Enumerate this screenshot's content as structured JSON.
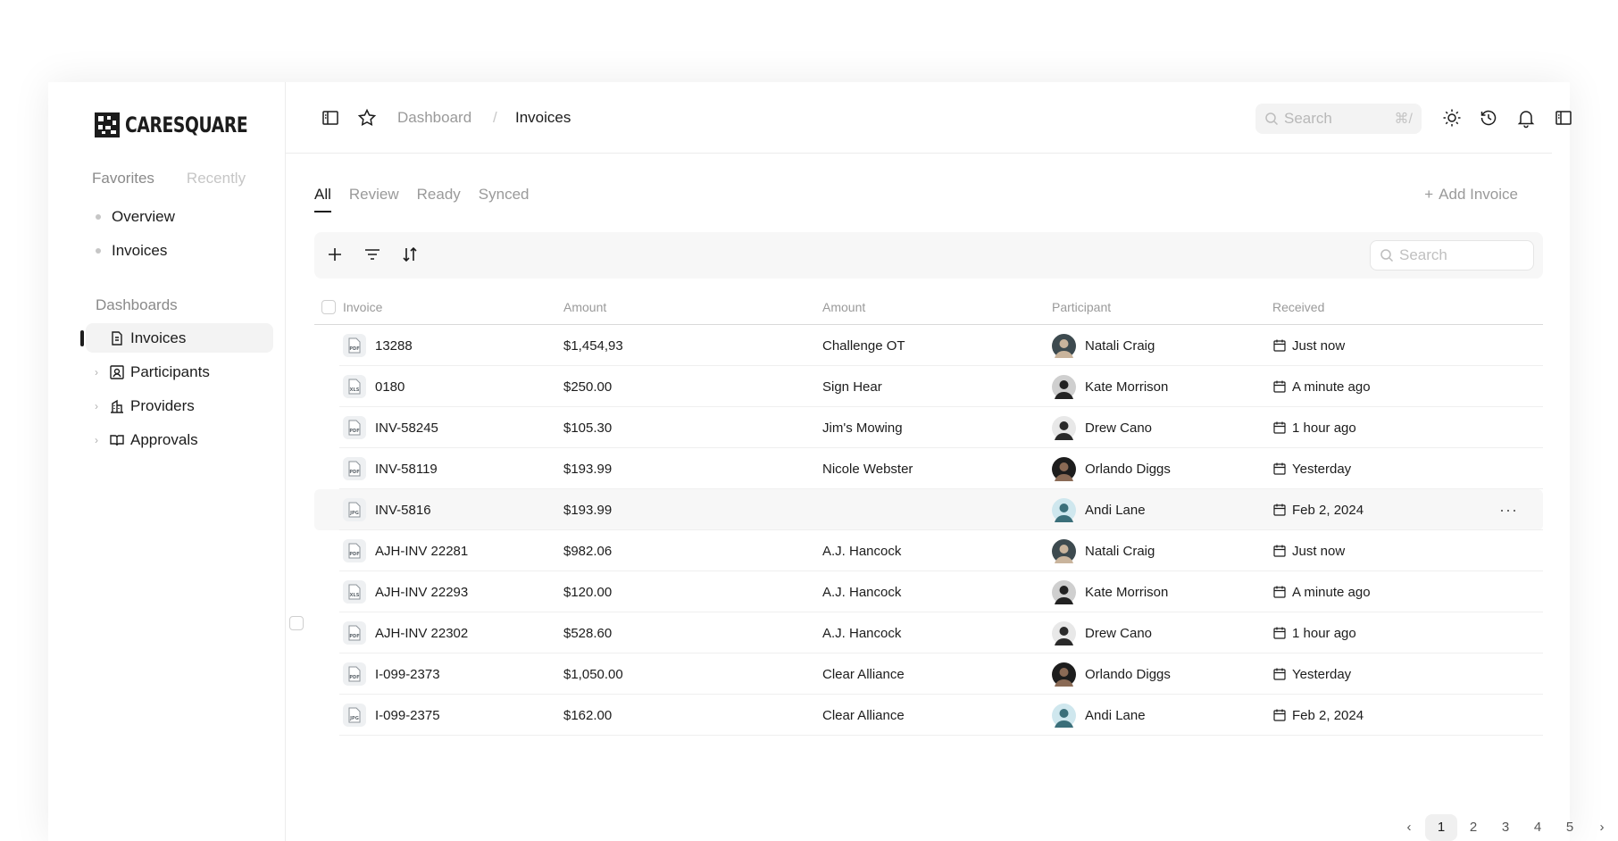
{
  "brand": {
    "name": "CARESQUARE"
  },
  "sidebar": {
    "fav_tabs": [
      "Favorites",
      "Recently"
    ],
    "favorites": [
      "Overview",
      "Invoices"
    ],
    "dashboards_label": "Dashboards",
    "dashboards": [
      {
        "label": "Invoices",
        "icon": "invoice-doc-icon",
        "active": true
      },
      {
        "label": "Participants",
        "icon": "participant-card-icon"
      },
      {
        "label": "Providers",
        "icon": "building-icon"
      },
      {
        "label": "Approvals",
        "icon": "book-open-icon"
      }
    ]
  },
  "header": {
    "breadcrumb": {
      "root": "Dashboard",
      "sep": "/",
      "current": "Invoices"
    },
    "search_placeholder": "Search",
    "search_shortcut": "⌘/"
  },
  "tabs": [
    "All",
    "Review",
    "Ready",
    "Synced"
  ],
  "actions": {
    "add_invoice": "Add Invoice",
    "table_search_placeholder": "Search"
  },
  "table": {
    "columns": [
      "Invoice",
      "Amount",
      "Amount",
      "Participant",
      "Received"
    ],
    "rows": [
      {
        "invoice": "13288",
        "type": "PDF",
        "amount": "$1,454,93",
        "payee": "Challenge OT",
        "participant": "Natali Craig",
        "received": "Just now"
      },
      {
        "invoice": "0180",
        "type": "XLS",
        "amount": "$250.00",
        "payee": "Sign Hear",
        "participant": "Kate Morrison",
        "received": "A minute ago"
      },
      {
        "invoice": "INV-58245",
        "type": "PDF",
        "amount": "$105.30",
        "payee": "Jim's Mowing",
        "participant": "Drew Cano",
        "received": "1 hour ago"
      },
      {
        "invoice": "INV-58119",
        "type": "PDF",
        "amount": "$193.99",
        "payee": "Nicole Webster",
        "participant": "Orlando Diggs",
        "received": "Yesterday"
      },
      {
        "invoice": "INV-5816",
        "type": "JPG",
        "amount": "$193.99",
        "payee": "",
        "participant": "Andi Lane",
        "received": "Feb 2, 2024"
      },
      {
        "invoice": "AJH-INV 22281",
        "type": "PDF",
        "amount": "$982.06",
        "payee": "A.J. Hancock",
        "participant": "Natali Craig",
        "received": "Just now"
      },
      {
        "invoice": "AJH-INV 22293",
        "type": "XLS",
        "amount": "$120.00",
        "payee": "A.J. Hancock",
        "participant": "Kate Morrison",
        "received": "A minute ago"
      },
      {
        "invoice": "AJH-INV 22302",
        "type": "PDF",
        "amount": "$528.60",
        "payee": "A.J. Hancock",
        "participant": "Drew Cano",
        "received": "1 hour ago"
      },
      {
        "invoice": "I-099-2373",
        "type": "PDF",
        "amount": "$1,050.00",
        "payee": "Clear Alliance",
        "participant": "Orlando Diggs",
        "received": "Yesterday"
      },
      {
        "invoice": "I-099-2375",
        "type": "JPG",
        "amount": "$162.00",
        "payee": "Clear Alliance",
        "participant": "Andi Lane",
        "received": "Feb 2, 2024"
      }
    ],
    "row_menu": "···"
  },
  "pagination": [
    "‹",
    "1",
    "2",
    "3",
    "4",
    "5",
    "›"
  ],
  "colors": {
    "text": "#1c1c1c",
    "muted": "#9a9a9a",
    "surface": "#f7f7f7",
    "border": "#ececec"
  }
}
